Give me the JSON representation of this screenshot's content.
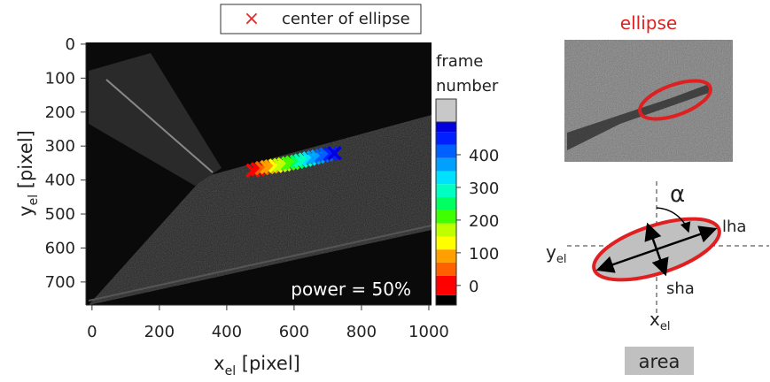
{
  "chart_data": {
    "type": "scatter",
    "xlabel": {
      "main": "x",
      "sub": "el",
      "rest": " [pixel]"
    },
    "ylabel": {
      "main": "y",
      "sub": "el",
      "rest": " [pixel]"
    },
    "xlim": [
      -18,
      1008
    ],
    "ylim": [
      -5,
      768
    ],
    "y_inverted": true,
    "xticks": [
      0,
      200,
      400,
      600,
      800,
      1000
    ],
    "yticks": [
      0,
      100,
      200,
      300,
      400,
      500,
      600,
      700
    ],
    "annotation": "power = 50%",
    "series": [
      {
        "name": "center of ellipse",
        "color": "#e03030",
        "x": [
          478,
          492,
          505,
          520,
          532,
          545,
          558,
          570,
          583,
          595,
          608,
          620,
          633,
          645,
          658,
          670,
          683,
          695,
          708,
          720
        ],
        "y": [
          372,
          368,
          365,
          362,
          360,
          358,
          356,
          354,
          351,
          349,
          346,
          343,
          340,
          337,
          334,
          331,
          328,
          325,
          323,
          321
        ],
        "frame": [
          0,
          25,
          50,
          75,
          100,
          125,
          150,
          175,
          200,
          225,
          250,
          275,
          300,
          325,
          350,
          375,
          400,
          425,
          450,
          475
        ]
      }
    ],
    "colorbar": {
      "label": [
        "frame",
        "number"
      ],
      "clim": [
        -60,
        500
      ],
      "ticks": [
        0,
        100,
        200,
        300,
        400
      ],
      "levels": [
        -60,
        -30,
        30,
        70,
        110,
        150,
        190,
        230,
        270,
        310,
        350,
        390,
        430,
        470,
        500
      ],
      "colors": [
        "#000000",
        "#ff0000",
        "#ff6000",
        "#ffa000",
        "#ffff00",
        "#c0ff00",
        "#40ff00",
        "#00ff60",
        "#00ffc0",
        "#00e0ff",
        "#00a0ff",
        "#0060ff",
        "#0020ff",
        "#0000e0"
      ]
    }
  },
  "inset": {
    "title": "ellipse",
    "alpha": "α",
    "lha": "lha",
    "sha": "sha",
    "y_label": {
      "main": "y",
      "sub": "el"
    },
    "x_label": {
      "main": "x",
      "sub": "el"
    },
    "area": "area"
  }
}
